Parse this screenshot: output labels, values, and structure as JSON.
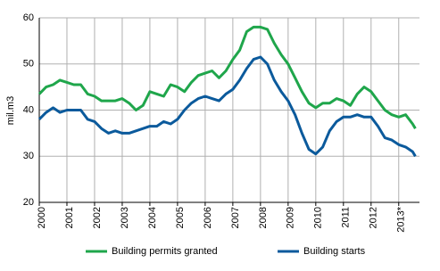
{
  "chart_data": {
    "type": "line",
    "y_label": "mil.m3",
    "x": [
      2000,
      2000.25,
      2000.5,
      2000.75,
      2001,
      2001.25,
      2001.5,
      2001.75,
      2002,
      2002.25,
      2002.5,
      2002.75,
      2003,
      2003.25,
      2003.5,
      2003.75,
      2004,
      2004.25,
      2004.5,
      2004.75,
      2005,
      2005.25,
      2005.5,
      2005.75,
      2006,
      2006.25,
      2006.5,
      2006.75,
      2007,
      2007.25,
      2007.5,
      2007.75,
      2008,
      2008.25,
      2008.5,
      2008.75,
      2009,
      2009.25,
      2009.5,
      2009.75,
      2010,
      2010.25,
      2010.5,
      2010.75,
      2011,
      2011.25,
      2011.5,
      2011.75,
      2012,
      2012.25,
      2012.5,
      2012.75,
      2013,
      2013.25,
      2013.5,
      2013.6
    ],
    "series": [
      {
        "name": "Building permits granted",
        "color": "#1fa64b",
        "values": [
          43.5,
          45,
          45.5,
          46.5,
          46,
          45.5,
          45.5,
          43.5,
          43,
          42,
          42,
          42,
          42.5,
          41.5,
          40,
          41,
          44,
          43.5,
          43,
          45.5,
          45,
          44,
          46,
          47.5,
          48,
          48.5,
          47,
          48.5,
          51,
          53,
          57,
          58,
          58,
          57.5,
          54.5,
          52,
          50,
          47,
          44,
          41.5,
          40.5,
          41.5,
          41.5,
          42.5,
          42,
          41,
          43.5,
          45,
          44,
          42,
          40,
          39,
          38.5,
          39,
          37,
          36
        ]
      },
      {
        "name": "Building starts",
        "color": "#0b5a9c",
        "values": [
          38,
          39.5,
          40.5,
          39.5,
          40,
          40,
          40,
          38,
          37.5,
          36,
          35,
          35.5,
          35,
          35,
          35.5,
          36,
          36.5,
          36.5,
          37.5,
          37,
          38,
          40,
          41.5,
          42.5,
          43,
          42.5,
          42,
          43.5,
          44.5,
          46.5,
          49,
          51,
          51.5,
          50,
          46.5,
          44,
          42,
          39,
          35,
          31.5,
          30.5,
          32,
          35.5,
          37.5,
          38.5,
          38.5,
          39,
          38.5,
          38.5,
          36.5,
          34,
          33.5,
          32.5,
          32,
          31,
          30
        ]
      }
    ],
    "xlim": [
      2000,
      2013.75
    ],
    "xticks": [
      2000,
      2001,
      2002,
      2003,
      2004,
      2005,
      2006,
      2007,
      2008,
      2009,
      2010,
      2011,
      2012,
      {
        "value": 2013,
        "label": "2013*"
      }
    ],
    "ylim": [
      20,
      60
    ],
    "yticks": [
      20,
      30,
      40,
      50,
      60
    ],
    "grid": true,
    "legend": "bottom"
  }
}
